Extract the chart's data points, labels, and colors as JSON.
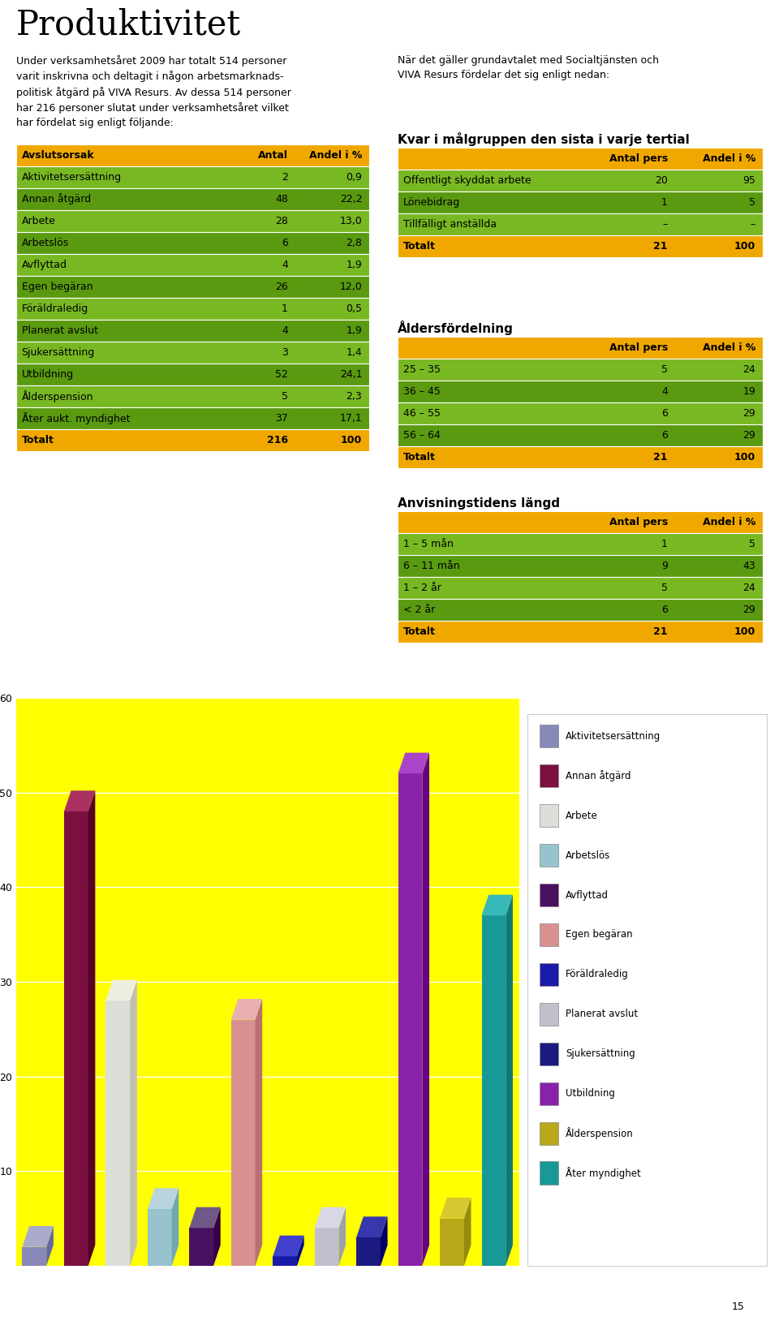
{
  "title": "Produktivitet",
  "text_left_lines": [
    "Under verksamhetsåret 2009 har totalt 514 personer",
    "varit inskrivna och deltagit i någon arbetsmarknads-",
    "politisk åtgärd på VIVA Resurs. Av dessa 514 personer",
    "har 216 personer slutat under verksamhetsåret vilket",
    "har fördelat sig enligt följande:"
  ],
  "text_right_lines": [
    "När det gäller grundavtalet med Socialtjänsten och",
    "VIVA Resurs fördelar det sig enligt nedan:"
  ],
  "table1_header": [
    "Avslutsorsak",
    "Antal",
    "Andel i %"
  ],
  "table1_rows": [
    [
      "Aktivitetsersättning",
      "2",
      "0,9"
    ],
    [
      "Annan åtgärd",
      "48",
      "22,2"
    ],
    [
      "Arbete",
      "28",
      "13,0"
    ],
    [
      "Arbetslös",
      "6",
      "2,8"
    ],
    [
      "Avflyttad",
      "4",
      "1,9"
    ],
    [
      "Egen begäran",
      "26",
      "12,0"
    ],
    [
      "Föräldraledig",
      "1",
      "0,5"
    ],
    [
      "Planerat avslut",
      "4",
      "1,9"
    ],
    [
      "Sjukersättning",
      "3",
      "1,4"
    ],
    [
      "Utbildning",
      "52",
      "24,1"
    ],
    [
      "Ålderspension",
      "5",
      "2,3"
    ],
    [
      "Åter aukt. myndighet",
      "37",
      "17,1"
    ]
  ],
  "table1_total": [
    "Totalt",
    "216",
    "100"
  ],
  "table2_title": "Kvar i målgruppen den sista i varje tertial",
  "table2_header": [
    "",
    "Antal pers",
    "Andel i %"
  ],
  "table2_rows": [
    [
      "Offentligt skyddat arbete",
      "20",
      "95"
    ],
    [
      "Lönebidrag",
      "1",
      "5"
    ],
    [
      "Tillfälligt anställda",
      "–",
      "–"
    ]
  ],
  "table2_total": [
    "Totalt",
    "21",
    "100"
  ],
  "table3_title": "Åldersfördelning",
  "table3_header": [
    "",
    "Antal pers",
    "Andel i %"
  ],
  "table3_rows": [
    [
      "25 – 35",
      "5",
      "24"
    ],
    [
      "36 – 45",
      "4",
      "19"
    ],
    [
      "46 – 55",
      "6",
      "29"
    ],
    [
      "56 – 64",
      "6",
      "29"
    ]
  ],
  "table3_total": [
    "Totalt",
    "21",
    "100"
  ],
  "table4_title": "Anvisningstidens längd",
  "table4_header": [
    "",
    "Antal pers",
    "Andel i %"
  ],
  "table4_rows": [
    [
      "1 – 5 mån",
      "1",
      "5"
    ],
    [
      "6 – 11 mån",
      "9",
      "43"
    ],
    [
      "1 – 2 år",
      "5",
      "24"
    ],
    [
      "< 2 år",
      "6",
      "29"
    ]
  ],
  "table4_total": [
    "Totalt",
    "21",
    "100"
  ],
  "bar_values": [
    2,
    48,
    28,
    6,
    4,
    26,
    1,
    4,
    3,
    52,
    5,
    37
  ],
  "bar_labels": [
    "Aktivitetsersättning",
    "Annan åtgärd",
    "Arbete",
    "Arbetslös",
    "Avflyttad",
    "Egen begäran",
    "Föräldraledig",
    "Planerat avslut",
    "Sjukersättning",
    "Utbildning",
    "Ålderspension",
    "Åter myndighet"
  ],
  "bar_colors": [
    "#8888bb",
    "#7a1040",
    "#deded8",
    "#96c3cc",
    "#4a1060",
    "#d89090",
    "#1a1aaa",
    "#c0c0cc",
    "#1a1a80",
    "#8822a8",
    "#b8a81a",
    "#189898"
  ],
  "bar_colors_side": [
    "#6666a0",
    "#580028",
    "#c0c0b8",
    "#72a8b4",
    "#380048",
    "#b87070",
    "#00008a",
    "#a0a0b0",
    "#000068",
    "#660088",
    "#968a10",
    "#107878"
  ],
  "bar_colors_top": [
    "#aaaacc",
    "#aa3060",
    "#eeeee0",
    "#b8d4dc",
    "#705888",
    "#e8b0b0",
    "#4040cc",
    "#d8d8e4",
    "#3838aa",
    "#aa44c8",
    "#d8c830",
    "#38b8b8"
  ],
  "chart_bg": "#ffff00",
  "ylim": [
    0,
    60
  ],
  "yticks": [
    10,
    20,
    30,
    40,
    50,
    60
  ],
  "legend_labels": [
    "Aktivitetsersättning",
    "Annan åtgärd",
    "Arbete",
    "Arbetslös",
    "Avflyttad",
    "Egen begäran",
    "Föräldraledig",
    "Planerat avslut",
    "Sjukersättning",
    "Utbildning",
    "Ålderspension",
    "Åter myndighet"
  ],
  "header_bg": "#f0a800",
  "row_bg_light": "#78b822",
  "row_bg_dark": "#5a9a10",
  "total_bg": "#f0a800",
  "page_bg": "#ffffff"
}
